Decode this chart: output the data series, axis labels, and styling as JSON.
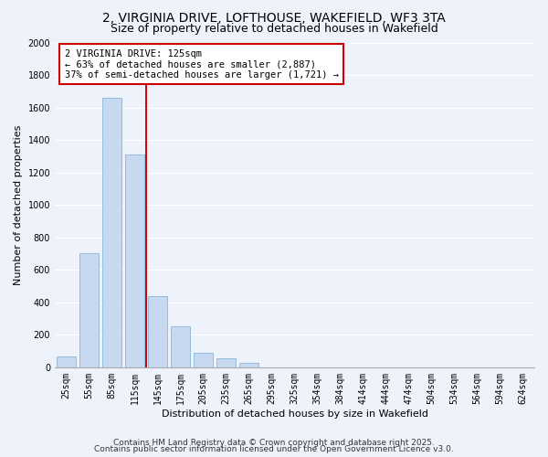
{
  "title": "2, VIRGINIA DRIVE, LOFTHOUSE, WAKEFIELD, WF3 3TA",
  "subtitle": "Size of property relative to detached houses in Wakefield",
  "xlabel": "Distribution of detached houses by size in Wakefield",
  "ylabel": "Number of detached properties",
  "categories": [
    "25sqm",
    "55sqm",
    "85sqm",
    "115sqm",
    "145sqm",
    "175sqm",
    "205sqm",
    "235sqm",
    "265sqm",
    "295sqm",
    "325sqm",
    "354sqm",
    "384sqm",
    "414sqm",
    "444sqm",
    "474sqm",
    "504sqm",
    "534sqm",
    "564sqm",
    "594sqm",
    "624sqm"
  ],
  "values": [
    65,
    700,
    1660,
    1310,
    440,
    255,
    90,
    55,
    25,
    0,
    0,
    0,
    0,
    0,
    0,
    0,
    0,
    0,
    0,
    0,
    0
  ],
  "bar_color": "#c6d9f0",
  "bar_edge_color": "#8ab4d8",
  "vline_color": "#cc0000",
  "annotation_text": "2 VIRGINIA DRIVE: 125sqm\n← 63% of detached houses are smaller (2,887)\n37% of semi-detached houses are larger (1,721) →",
  "annotation_box_color": "white",
  "annotation_box_edge": "#cc0000",
  "ylim": [
    0,
    2000
  ],
  "yticks": [
    0,
    200,
    400,
    600,
    800,
    1000,
    1200,
    1400,
    1600,
    1800,
    2000
  ],
  "footer1": "Contains HM Land Registry data © Crown copyright and database right 2025.",
  "footer2": "Contains public sector information licensed under the Open Government Licence v3.0.",
  "bg_color": "#eef2fb",
  "grid_color": "white",
  "title_fontsize": 10,
  "subtitle_fontsize": 9,
  "axis_label_fontsize": 8,
  "tick_fontsize": 7,
  "annot_fontsize": 7.5,
  "footer_fontsize": 6.5
}
